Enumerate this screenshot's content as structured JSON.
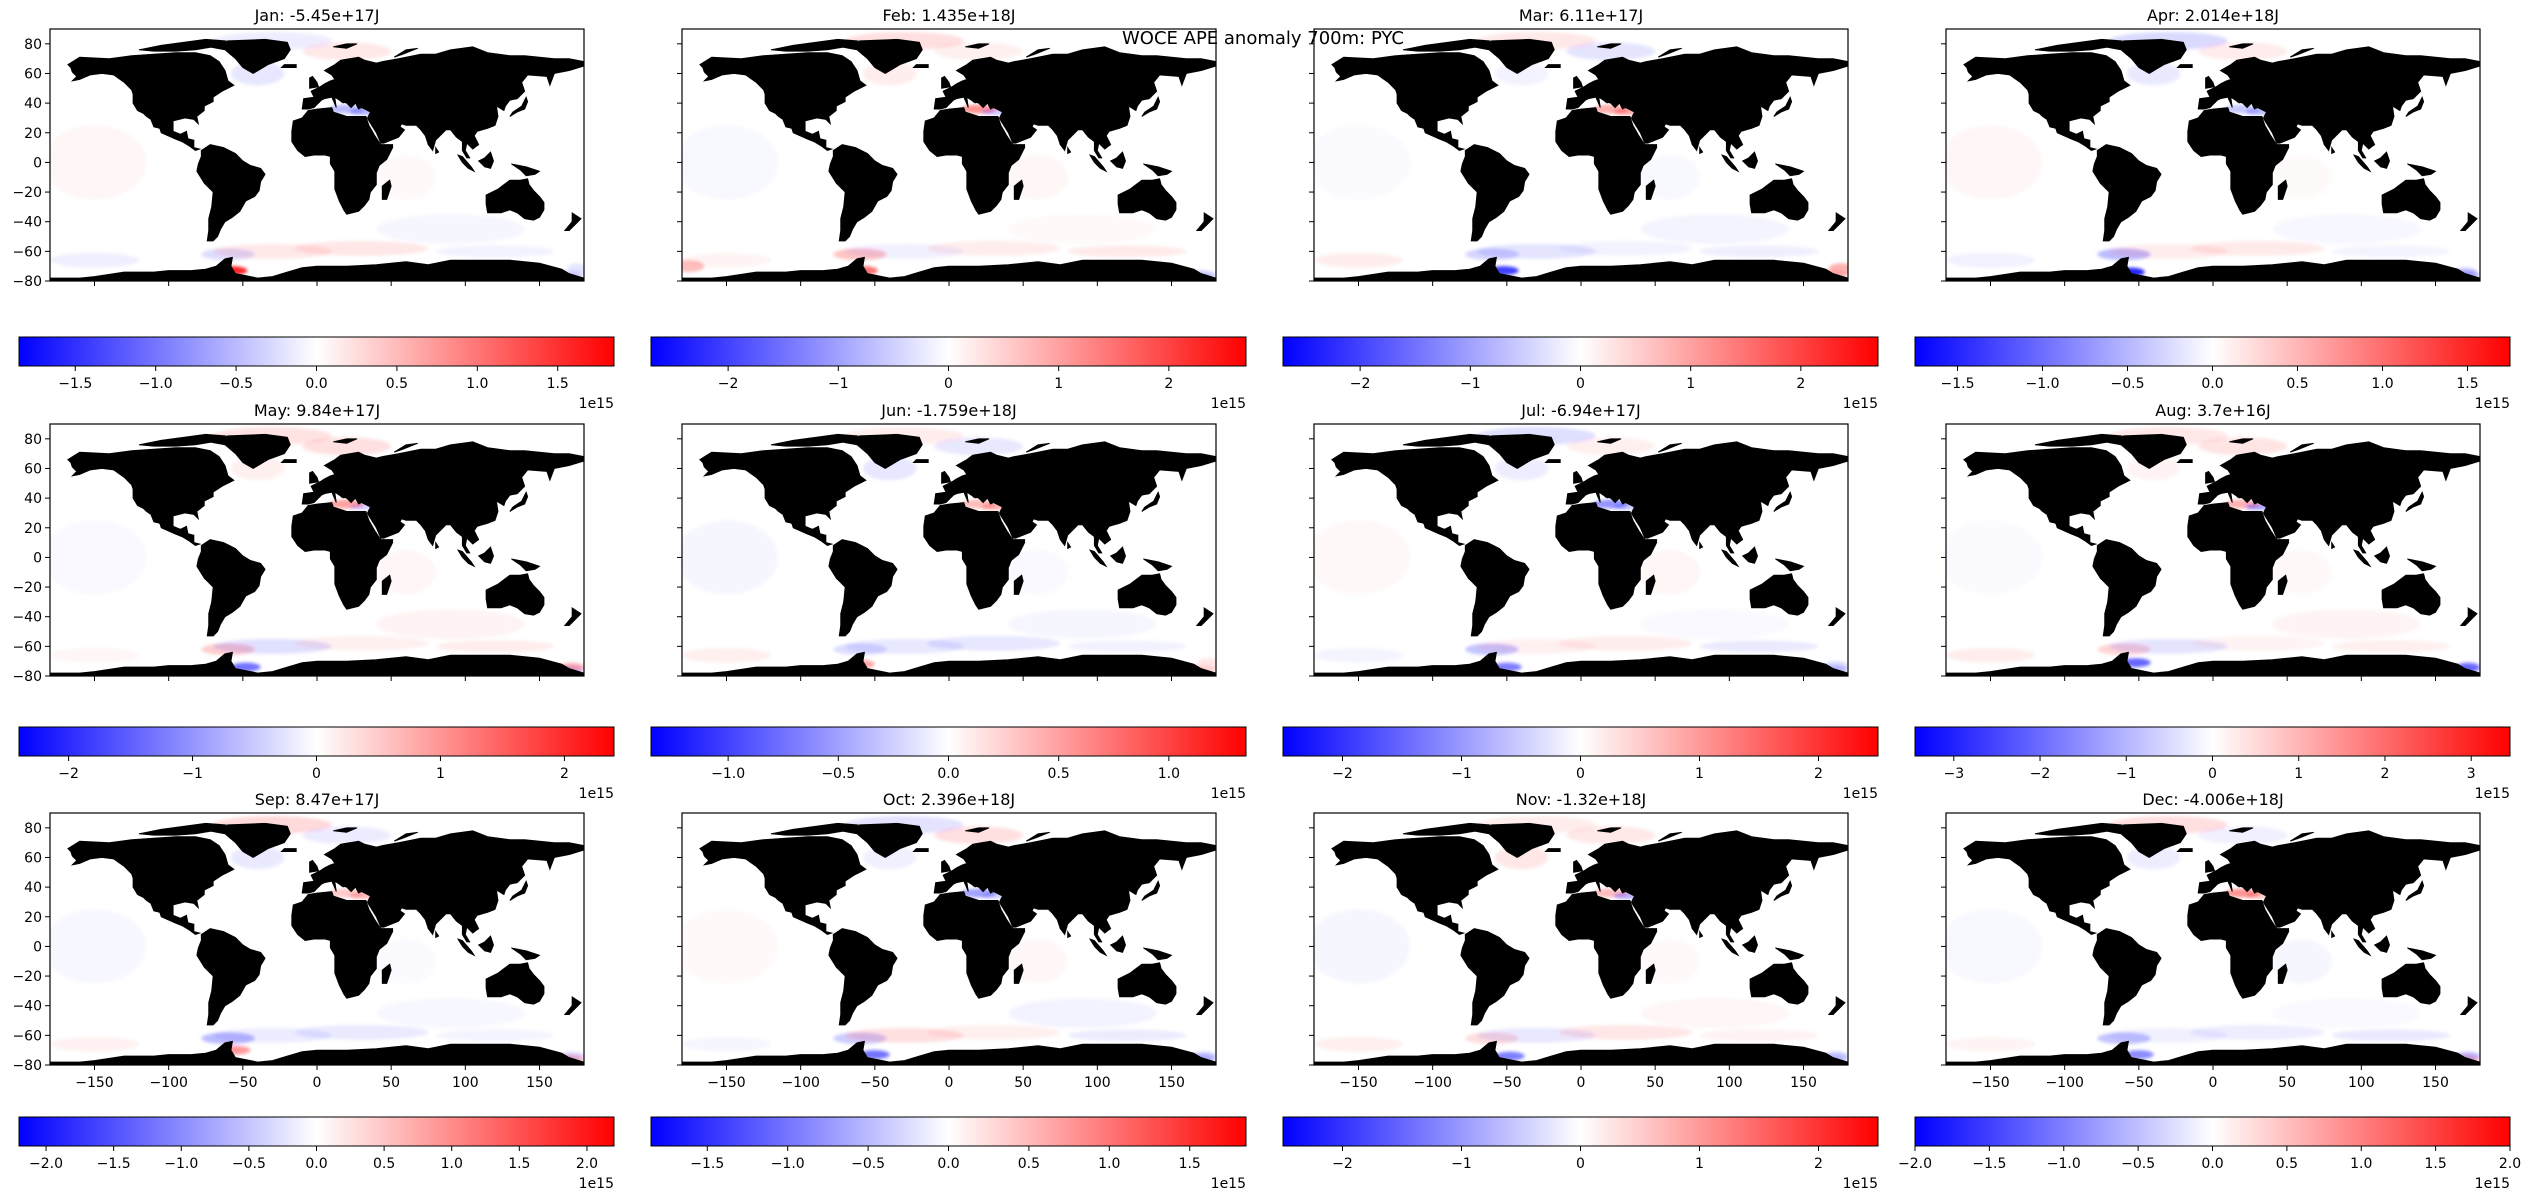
{
  "figure": {
    "suptitle": "WOCE APE anomaly 700m: PYC",
    "colors": {
      "negative": "#0000ff",
      "zero": "#ffffff",
      "positive": "#ff0000",
      "land": "#000000",
      "frame": "#000000"
    },
    "map_axes": {
      "xlim": [
        -180,
        180
      ],
      "ylim": [
        -80,
        90
      ],
      "xticks": [
        -150,
        -100,
        -50,
        0,
        50,
        100,
        150
      ],
      "xtick_labels": [
        "−150",
        "−100",
        "−50",
        "0",
        "50",
        "100",
        "150"
      ],
      "yticks": [
        80,
        60,
        40,
        20,
        0,
        -20,
        -40,
        -60,
        -80
      ],
      "ytick_labels": [
        "80",
        "60",
        "40",
        "20",
        "0",
        "−20",
        "−40",
        "−60",
        "−80"
      ],
      "y_labels_on_column": 0,
      "x_labels_on_row": 2
    },
    "colormap": "bwr",
    "colorbar_multiplier_label": "1e15",
    "panels": [
      {
        "title": "Jan: -5.45e+17J",
        "colorbar": {
          "vmin": -1.85,
          "vmax": 1.85,
          "ticks": [
            -1.5,
            -1.0,
            -0.5,
            0.0,
            0.5,
            1.0,
            1.5
          ],
          "tick_labels": [
            "−1.5",
            "−1.0",
            "−0.5",
            "0.0",
            "0.5",
            "1.0",
            "1.5"
          ]
        }
      },
      {
        "title": "Feb: 1.435e+18J",
        "colorbar": {
          "vmin": -2.7,
          "vmax": 2.7,
          "ticks": [
            -2,
            -1,
            0,
            1,
            2
          ],
          "tick_labels": [
            "−2",
            "−1",
            "0",
            "1",
            "2"
          ]
        }
      },
      {
        "title": "Mar: 6.11e+17J",
        "colorbar": {
          "vmin": -2.7,
          "vmax": 2.7,
          "ticks": [
            -2,
            -1,
            0,
            1,
            2
          ],
          "tick_labels": [
            "−2",
            "−1",
            "0",
            "1",
            "2"
          ]
        }
      },
      {
        "title": "Apr: 2.014e+18J",
        "colorbar": {
          "vmin": -1.75,
          "vmax": 1.75,
          "ticks": [
            -1.5,
            -1.0,
            -0.5,
            0.0,
            0.5,
            1.0,
            1.5
          ],
          "tick_labels": [
            "−1.5",
            "−1.0",
            "−0.5",
            "0.0",
            "0.5",
            "1.0",
            "1.5"
          ]
        }
      },
      {
        "title": "May: 9.84e+17J",
        "colorbar": {
          "vmin": -2.4,
          "vmax": 2.4,
          "ticks": [
            -2,
            -1,
            0,
            1,
            2
          ],
          "tick_labels": [
            "−2",
            "−1",
            "0",
            "1",
            "2"
          ]
        }
      },
      {
        "title": "Jun: -1.759e+18J",
        "colorbar": {
          "vmin": -1.35,
          "vmax": 1.35,
          "ticks": [
            -1.0,
            -0.5,
            0.0,
            0.5,
            1.0
          ],
          "tick_labels": [
            "−1.0",
            "−0.5",
            "0.0",
            "0.5",
            "1.0"
          ]
        }
      },
      {
        "title": "Jul: -6.94e+17J",
        "colorbar": {
          "vmin": -2.5,
          "vmax": 2.5,
          "ticks": [
            -2,
            -1,
            0,
            1,
            2
          ],
          "tick_labels": [
            "−2",
            "−1",
            "0",
            "1",
            "2"
          ]
        }
      },
      {
        "title": "Aug: 3.7e+16J",
        "colorbar": {
          "vmin": -3.45,
          "vmax": 3.45,
          "ticks": [
            -3,
            -2,
            -1,
            0,
            1,
            2,
            3
          ],
          "tick_labels": [
            "−3",
            "−2",
            "−1",
            "0",
            "1",
            "2",
            "3"
          ]
        }
      },
      {
        "title": "Sep: 8.47e+17J",
        "colorbar": {
          "vmin": -2.2,
          "vmax": 2.2,
          "ticks": [
            -2.0,
            -1.5,
            -1.0,
            -0.5,
            0.0,
            0.5,
            1.0,
            1.5,
            2.0
          ],
          "tick_labels": [
            "−2.0",
            "−1.5",
            "−1.0",
            "−0.5",
            "0.0",
            "0.5",
            "1.0",
            "1.5",
            "2.0"
          ]
        }
      },
      {
        "title": "Oct: 2.396e+18J",
        "colorbar": {
          "vmin": -1.85,
          "vmax": 1.85,
          "ticks": [
            -1.5,
            -1.0,
            -0.5,
            0.0,
            0.5,
            1.0,
            1.5
          ],
          "tick_labels": [
            "−1.5",
            "−1.0",
            "−0.5",
            "0.0",
            "0.5",
            "1.0",
            "1.5"
          ]
        }
      },
      {
        "title": "Nov: -1.32e+18J",
        "colorbar": {
          "vmin": -2.5,
          "vmax": 2.5,
          "ticks": [
            -2,
            -1,
            0,
            1,
            2
          ],
          "tick_labels": [
            "−2",
            "−1",
            "0",
            "1",
            "2"
          ]
        }
      },
      {
        "title": "Dec: -4.006e+18J",
        "colorbar": {
          "vmin": -2.0,
          "vmax": 2.0,
          "ticks": [
            -2.0,
            -1.5,
            -1.0,
            -0.5,
            0.0,
            0.5,
            1.0,
            1.5,
            2.0
          ],
          "tick_labels": [
            "−2.0",
            "−1.5",
            "−1.0",
            "−0.5",
            "0.0",
            "0.5",
            "1.0",
            "1.5",
            "2.0"
          ]
        }
      }
    ]
  }
}
